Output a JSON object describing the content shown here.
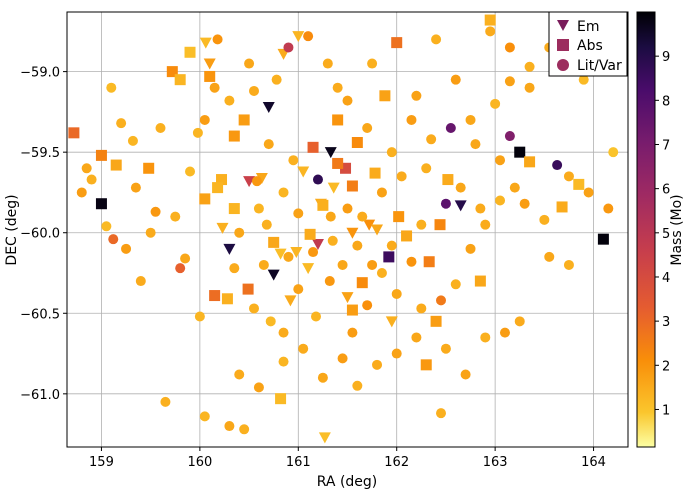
{
  "chart_data": {
    "type": "scatter",
    "title": "",
    "xlabel": "RA (deg)",
    "ylabel": "DEC (deg)",
    "xlim": [
      158.65,
      164.35
    ],
    "ylim": [
      -61.33,
      -58.63
    ],
    "xticks": [
      159,
      160,
      161,
      162,
      163,
      164
    ],
    "yticks": [
      -59.0,
      -59.5,
      -60.0,
      -60.5,
      -61.0
    ],
    "xtick_labels": [
      "159",
      "160",
      "161",
      "162",
      "163",
      "164"
    ],
    "ytick_labels": [
      "−59.0",
      "−59.5",
      "−60.0",
      "−60.5",
      "−61.0"
    ],
    "grid": true,
    "legend": {
      "position": "top-right",
      "entries": [
        {
          "label": "Em",
          "marker": "triangle-down"
        },
        {
          "label": "Abs",
          "marker": "square"
        },
        {
          "label": "Lit/Var",
          "marker": "circle"
        }
      ]
    },
    "colorbar": {
      "label": "Mass (Mo)",
      "range": [
        0.15,
        10.0
      ],
      "ticks": [
        1,
        2,
        3,
        4,
        5,
        6,
        7,
        8,
        9
      ],
      "tick_labels": [
        "1",
        "2",
        "3",
        "4",
        "5",
        "6",
        "7",
        "8",
        "9"
      ],
      "colormap": "inferno_r"
    },
    "series": [
      {
        "name": "Em",
        "marker": "triangle-down",
        "points": [
          [
            160.1,
            -58.95,
            1.8
          ],
          [
            160.06,
            -58.82,
            1.2
          ],
          [
            160.85,
            -58.89,
            1.5
          ],
          [
            161.0,
            -58.78,
            1.3
          ],
          [
            160.7,
            -59.22,
            9.5
          ],
          [
            161.33,
            -59.5,
            9.7
          ],
          [
            160.5,
            -59.68,
            4.5
          ],
          [
            160.63,
            -59.66,
            1.6
          ],
          [
            161.05,
            -59.62,
            1.3
          ],
          [
            161.36,
            -59.72,
            1.2
          ],
          [
            161.23,
            -59.82,
            1.5
          ],
          [
            160.23,
            -59.97,
            1.4
          ],
          [
            160.3,
            -60.1,
            9.2
          ],
          [
            160.75,
            -60.26,
            9.6
          ],
          [
            160.82,
            -60.13,
            1.1
          ],
          [
            160.98,
            -60.12,
            1.3
          ],
          [
            161.2,
            -60.07,
            4.8
          ],
          [
            161.55,
            -60.0,
            2.0
          ],
          [
            161.72,
            -59.95,
            2.1
          ],
          [
            161.8,
            -59.98,
            1.6
          ],
          [
            162.65,
            -59.83,
            9.0
          ],
          [
            161.27,
            -61.27,
            1.1
          ],
          [
            161.95,
            -60.55,
            1.4
          ],
          [
            161.5,
            -60.4,
            1.7
          ],
          [
            160.92,
            -60.42,
            1.5
          ],
          [
            161.1,
            -60.22,
            1.2
          ]
        ]
      },
      {
        "name": "Abs",
        "marker": "square",
        "points": [
          [
            158.72,
            -59.38,
            3.0
          ],
          [
            159.0,
            -59.82,
            9.8
          ],
          [
            159.0,
            -59.52,
            2.4
          ],
          [
            159.15,
            -59.58,
            1.6
          ],
          [
            159.48,
            -59.6,
            2.0
          ],
          [
            159.72,
            -59.0,
            2.2
          ],
          [
            159.8,
            -59.05,
            1.3
          ],
          [
            159.9,
            -58.88,
            1.1
          ],
          [
            160.1,
            -59.03,
            2.0
          ],
          [
            160.45,
            -59.3,
            1.8
          ],
          [
            160.22,
            -59.67,
            1.4
          ],
          [
            160.35,
            -59.4,
            1.9
          ],
          [
            160.05,
            -59.79,
            1.7
          ],
          [
            160.18,
            -59.72,
            1.3
          ],
          [
            160.15,
            -60.39,
            2.9
          ],
          [
            160.28,
            -60.41,
            1.4
          ],
          [
            160.49,
            -60.35,
            2.8
          ],
          [
            160.75,
            -60.06,
            1.6
          ],
          [
            161.12,
            -60.01,
            1.5
          ],
          [
            161.25,
            -59.83,
            1.4
          ],
          [
            161.48,
            -59.6,
            4.0
          ],
          [
            161.55,
            -59.71,
            2.5
          ],
          [
            161.6,
            -59.44,
            2.2
          ],
          [
            161.4,
            -59.3,
            2.0
          ],
          [
            161.88,
            -59.15,
            1.7
          ],
          [
            161.78,
            -59.63,
            1.5
          ],
          [
            161.92,
            -60.15,
            8.5
          ],
          [
            162.02,
            -59.9,
            2.0
          ],
          [
            162.1,
            -60.02,
            1.6
          ],
          [
            162.33,
            -60.18,
            2.5
          ],
          [
            162.52,
            -59.67,
            1.5
          ],
          [
            162.44,
            -59.95,
            2.3
          ],
          [
            162.0,
            -58.82,
            2.8
          ],
          [
            163.25,
            -59.5,
            9.9
          ],
          [
            163.35,
            -59.56,
            1.6
          ],
          [
            163.68,
            -59.84,
            1.5
          ],
          [
            163.85,
            -59.7,
            1.2
          ],
          [
            164.1,
            -60.04,
            9.9
          ],
          [
            162.85,
            -60.3,
            1.6
          ],
          [
            162.4,
            -60.55,
            1.8
          ],
          [
            161.65,
            -60.31,
            2.2
          ],
          [
            161.55,
            -60.48,
            1.8
          ],
          [
            160.82,
            -61.03,
            1.2
          ],
          [
            162.3,
            -60.82,
            1.9
          ],
          [
            161.4,
            -59.57,
            2.6
          ],
          [
            160.35,
            -59.85,
            1.3
          ],
          [
            161.15,
            -59.47,
            3.2
          ],
          [
            162.95,
            -58.68,
            1.4
          ]
        ]
      },
      {
        "name": "Lit/Var",
        "marker": "circle",
        "points": [
          [
            159.32,
            -59.43,
            1.3
          ],
          [
            158.85,
            -59.6,
            1.6
          ],
          [
            158.9,
            -59.67,
            1.4
          ],
          [
            159.05,
            -59.96,
            1.2
          ],
          [
            159.12,
            -60.04,
            3.0
          ],
          [
            159.25,
            -60.1,
            1.8
          ],
          [
            159.4,
            -60.3,
            1.5
          ],
          [
            159.35,
            -59.72,
            1.7
          ],
          [
            159.6,
            -59.35,
            1.4
          ],
          [
            159.55,
            -59.87,
            1.9
          ],
          [
            159.75,
            -59.9,
            1.4
          ],
          [
            159.85,
            -60.16,
            1.6
          ],
          [
            159.9,
            -59.62,
            1.2
          ],
          [
            159.98,
            -59.38,
            1.3
          ],
          [
            160.05,
            -59.3,
            1.8
          ],
          [
            160.15,
            -59.1,
            1.7
          ],
          [
            160.18,
            -58.8,
            2.0
          ],
          [
            160.3,
            -59.18,
            1.4
          ],
          [
            160.5,
            -58.95,
            1.6
          ],
          [
            160.55,
            -59.12,
            1.5
          ],
          [
            160.6,
            -59.85,
            1.3
          ],
          [
            160.68,
            -59.95,
            1.4
          ],
          [
            160.4,
            -60.0,
            1.6
          ],
          [
            160.35,
            -60.22,
            1.5
          ],
          [
            160.55,
            -60.47,
            1.4
          ],
          [
            160.72,
            -60.55,
            1.2
          ],
          [
            160.85,
            -60.62,
            1.5
          ],
          [
            161.0,
            -60.35,
            1.7
          ],
          [
            161.18,
            -60.52,
            1.3
          ],
          [
            161.32,
            -60.3,
            1.9
          ],
          [
            161.45,
            -60.2,
            1.6
          ],
          [
            161.55,
            -60.62,
            1.8
          ],
          [
            161.7,
            -60.45,
            2.1
          ],
          [
            161.85,
            -60.25,
            1.4
          ],
          [
            162.0,
            -60.38,
            1.6
          ],
          [
            162.15,
            -60.18,
            2.0
          ],
          [
            162.25,
            -60.47,
            1.5
          ],
          [
            162.45,
            -60.42,
            2.6
          ],
          [
            162.6,
            -60.32,
            1.4
          ],
          [
            162.75,
            -60.1,
            1.7
          ],
          [
            162.9,
            -59.95,
            1.5
          ],
          [
            163.05,
            -59.8,
            1.3
          ],
          [
            163.2,
            -59.72,
            1.6
          ],
          [
            163.3,
            -59.82,
            1.8
          ],
          [
            163.5,
            -59.92,
            1.4
          ],
          [
            163.63,
            -59.58,
            8.6
          ],
          [
            163.75,
            -59.65,
            1.5
          ],
          [
            163.95,
            -59.75,
            1.7
          ],
          [
            164.15,
            -59.85,
            1.9
          ],
          [
            164.2,
            -59.5,
            1.0
          ],
          [
            163.9,
            -59.05,
            1.2
          ],
          [
            163.55,
            -58.85,
            1.5
          ],
          [
            163.35,
            -58.97,
            1.4
          ],
          [
            163.15,
            -59.06,
            1.7
          ],
          [
            163.0,
            -59.2,
            1.3
          ],
          [
            162.75,
            -59.3,
            1.6
          ],
          [
            162.55,
            -59.35,
            7.5
          ],
          [
            162.35,
            -59.42,
            1.5
          ],
          [
            162.15,
            -59.3,
            1.8
          ],
          [
            161.95,
            -59.5,
            1.4
          ],
          [
            161.7,
            -59.35,
            1.6
          ],
          [
            161.5,
            -59.18,
            1.7
          ],
          [
            161.3,
            -58.95,
            1.5
          ],
          [
            161.1,
            -58.78,
            2.2
          ],
          [
            160.9,
            -58.85,
            4.8
          ],
          [
            160.78,
            -59.05,
            1.4
          ],
          [
            161.2,
            -59.67,
            8.8
          ],
          [
            161.33,
            -59.9,
            1.6
          ],
          [
            161.5,
            -59.85,
            1.8
          ],
          [
            161.65,
            -59.9,
            1.5
          ],
          [
            161.0,
            -59.88,
            1.7
          ],
          [
            160.85,
            -59.75,
            1.3
          ],
          [
            161.15,
            -60.12,
            1.9
          ],
          [
            161.35,
            -60.05,
            1.4
          ],
          [
            161.6,
            -60.08,
            1.6
          ],
          [
            161.75,
            -60.2,
            1.8
          ],
          [
            161.95,
            -60.08,
            1.5
          ],
          [
            162.25,
            -59.95,
            1.4
          ],
          [
            162.5,
            -59.82,
            7.8
          ],
          [
            162.65,
            -59.72,
            1.6
          ],
          [
            162.85,
            -59.85,
            1.5
          ],
          [
            163.05,
            -59.55,
            1.7
          ],
          [
            163.15,
            -59.4,
            6.8
          ],
          [
            162.4,
            -58.8,
            1.4
          ],
          [
            162.6,
            -59.05,
            1.8
          ],
          [
            162.95,
            -58.75,
            1.5
          ],
          [
            163.15,
            -58.85,
            2.1
          ],
          [
            163.35,
            -59.1,
            1.6
          ],
          [
            159.65,
            -61.05,
            1.4
          ],
          [
            160.05,
            -61.14,
            1.3
          ],
          [
            160.4,
            -60.88,
            1.5
          ],
          [
            160.3,
            -61.2,
            1.6
          ],
          [
            160.45,
            -61.22,
            1.4
          ],
          [
            160.6,
            -60.96,
            1.7
          ],
          [
            160.85,
            -60.8,
            1.3
          ],
          [
            161.05,
            -60.72,
            1.5
          ],
          [
            161.25,
            -60.9,
            1.6
          ],
          [
            161.45,
            -60.78,
            1.8
          ],
          [
            161.6,
            -60.95,
            1.4
          ],
          [
            161.8,
            -60.82,
            1.5
          ],
          [
            162.0,
            -60.75,
            1.7
          ],
          [
            162.2,
            -60.65,
            1.6
          ],
          [
            162.45,
            -61.12,
            1.4
          ],
          [
            162.5,
            -60.72,
            1.5
          ],
          [
            162.7,
            -60.88,
            1.7
          ],
          [
            162.9,
            -60.65,
            1.4
          ],
          [
            163.1,
            -60.62,
            1.8
          ],
          [
            163.25,
            -60.55,
            1.5
          ],
          [
            160.9,
            -60.15,
            1.6
          ],
          [
            160.65,
            -60.2,
            1.5
          ],
          [
            162.8,
            -59.45,
            1.6
          ],
          [
            162.3,
            -59.6,
            1.4
          ],
          [
            162.05,
            -59.65,
            1.5
          ],
          [
            161.85,
            -59.75,
            1.7
          ],
          [
            160.95,
            -59.55,
            1.4
          ],
          [
            160.7,
            -59.45,
            1.6
          ],
          [
            159.5,
            -60.0,
            1.5
          ],
          [
            159.2,
            -59.32,
            1.4
          ],
          [
            160.0,
            -60.52,
            1.3
          ],
          [
            159.8,
            -60.22,
            3.2
          ],
          [
            161.4,
            -59.1,
            1.5
          ],
          [
            162.2,
            -59.15,
            1.7
          ],
          [
            163.55,
            -60.15,
            1.6
          ],
          [
            163.75,
            -60.2,
            1.4
          ],
          [
            158.8,
            -59.75,
            1.8
          ],
          [
            159.1,
            -59.1,
            1.2
          ],
          [
            160.58,
            -59.68,
            1.9
          ],
          [
            161.75,
            -58.95,
            1.4
          ]
        ]
      }
    ]
  }
}
